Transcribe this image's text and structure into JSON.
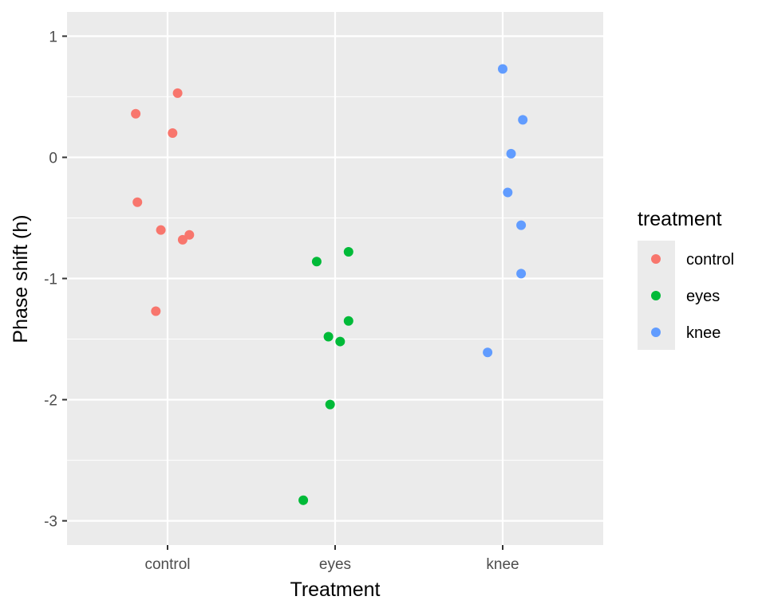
{
  "chart_data": {
    "type": "scatter",
    "title": "",
    "xlabel": "Treatment",
    "ylabel": "Phase shift (h)",
    "categories": [
      "control",
      "eyes",
      "knee"
    ],
    "ylim": [
      -3.2,
      1.2
    ],
    "yticks": [
      1,
      0,
      -1,
      -2,
      -3
    ],
    "ytick_labels": [
      "1",
      "0",
      "-1",
      "-2",
      "-3"
    ],
    "grid": true,
    "legend": {
      "title": "treatment",
      "position": "right"
    },
    "series": [
      {
        "name": "control",
        "color": "#F8766D",
        "points": [
          {
            "x": "control",
            "jitter": -0.19,
            "y": 0.36
          },
          {
            "x": "control",
            "jitter": 0.06,
            "y": 0.53
          },
          {
            "x": "control",
            "jitter": 0.03,
            "y": 0.2
          },
          {
            "x": "control",
            "jitter": -0.18,
            "y": -0.37
          },
          {
            "x": "control",
            "jitter": -0.04,
            "y": -0.6
          },
          {
            "x": "control",
            "jitter": 0.09,
            "y": -0.68
          },
          {
            "x": "control",
            "jitter": 0.13,
            "y": -0.64
          },
          {
            "x": "control",
            "jitter": -0.07,
            "y": -1.27
          }
        ]
      },
      {
        "name": "eyes",
        "color": "#00BA38",
        "points": [
          {
            "x": "eyes",
            "jitter": -0.11,
            "y": -0.86
          },
          {
            "x": "eyes",
            "jitter": 0.08,
            "y": -0.78
          },
          {
            "x": "eyes",
            "jitter": 0.08,
            "y": -1.35
          },
          {
            "x": "eyes",
            "jitter": -0.04,
            "y": -1.48
          },
          {
            "x": "eyes",
            "jitter": 0.03,
            "y": -1.52
          },
          {
            "x": "eyes",
            "jitter": -0.03,
            "y": -2.04
          },
          {
            "x": "eyes",
            "jitter": -0.19,
            "y": -2.83
          }
        ]
      },
      {
        "name": "knee",
        "color": "#619CFF",
        "points": [
          {
            "x": "knee",
            "jitter": 0.0,
            "y": 0.73
          },
          {
            "x": "knee",
            "jitter": 0.12,
            "y": 0.31
          },
          {
            "x": "knee",
            "jitter": 0.05,
            "y": 0.03
          },
          {
            "x": "knee",
            "jitter": 0.03,
            "y": -0.29
          },
          {
            "x": "knee",
            "jitter": 0.11,
            "y": -0.56
          },
          {
            "x": "knee",
            "jitter": 0.11,
            "y": -0.96
          },
          {
            "x": "knee",
            "jitter": -0.09,
            "y": -1.61
          }
        ]
      }
    ]
  }
}
